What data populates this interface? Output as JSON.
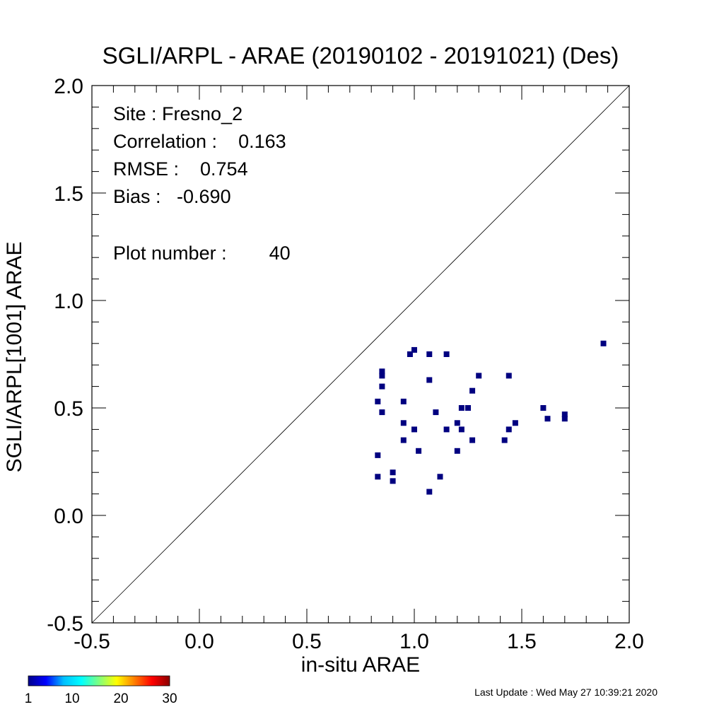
{
  "chart_data": {
    "type": "scatter",
    "title": "SGLI/ARPL - ARAE (20190102 - 20191021) (Des)",
    "xlabel": "in-situ ARAE",
    "ylabel": "SGLI/ARPL[1001]    ARAE",
    "xlim": [
      -0.5,
      2.0
    ],
    "ylim": [
      -0.5,
      2.0
    ],
    "x_ticks": [
      "-0.5",
      "0.0",
      "0.5",
      "1.0",
      "1.5",
      "2.0"
    ],
    "y_ticks": [
      "-0.5",
      "0.0",
      "0.5",
      "1.0",
      "1.5",
      "2.0"
    ],
    "one_to_one_line": true,
    "grid": false,
    "point_color": "#000080",
    "points": [
      {
        "x": 0.83,
        "y": 0.53
      },
      {
        "x": 0.83,
        "y": 0.28
      },
      {
        "x": 0.83,
        "y": 0.18
      },
      {
        "x": 0.85,
        "y": 0.67
      },
      {
        "x": 0.85,
        "y": 0.65
      },
      {
        "x": 0.85,
        "y": 0.6
      },
      {
        "x": 0.85,
        "y": 0.48
      },
      {
        "x": 0.9,
        "y": 0.2
      },
      {
        "x": 0.9,
        "y": 0.16
      },
      {
        "x": 0.95,
        "y": 0.53
      },
      {
        "x": 0.95,
        "y": 0.43
      },
      {
        "x": 0.95,
        "y": 0.35
      },
      {
        "x": 0.98,
        "y": 0.75
      },
      {
        "x": 1.0,
        "y": 0.77
      },
      {
        "x": 1.0,
        "y": 0.4
      },
      {
        "x": 1.02,
        "y": 0.3
      },
      {
        "x": 1.07,
        "y": 0.75
      },
      {
        "x": 1.07,
        "y": 0.63
      },
      {
        "x": 1.07,
        "y": 0.11
      },
      {
        "x": 1.1,
        "y": 0.48
      },
      {
        "x": 1.12,
        "y": 0.18
      },
      {
        "x": 1.15,
        "y": 0.75
      },
      {
        "x": 1.2,
        "y": 0.43
      },
      {
        "x": 1.2,
        "y": 0.3
      },
      {
        "x": 1.22,
        "y": 0.5
      },
      {
        "x": 1.22,
        "y": 0.4
      },
      {
        "x": 1.25,
        "y": 0.5
      },
      {
        "x": 1.27,
        "y": 0.58
      },
      {
        "x": 1.27,
        "y": 0.35
      },
      {
        "x": 1.3,
        "y": 0.65
      },
      {
        "x": 1.42,
        "y": 0.35
      },
      {
        "x": 1.44,
        "y": 0.65
      },
      {
        "x": 1.44,
        "y": 0.4
      },
      {
        "x": 1.47,
        "y": 0.43
      },
      {
        "x": 1.6,
        "y": 0.5
      },
      {
        "x": 1.62,
        "y": 0.45
      },
      {
        "x": 1.7,
        "y": 0.47
      },
      {
        "x": 1.7,
        "y": 0.45
      },
      {
        "x": 1.88,
        "y": 0.8
      },
      {
        "x": 1.15,
        "y": 0.4
      }
    ],
    "annotations": {
      "site": "Site : Fresno_2",
      "correlation": "Correlation :    0.163",
      "rmse": "RMSE :    0.754",
      "bias": "Bias :   -0.690",
      "plot_number": "Plot number :        40"
    },
    "colorbar": {
      "colors": [
        "#00008b",
        "#0000ff",
        "#00bfff",
        "#00ffff",
        "#7fff7f",
        "#ffff00",
        "#ff7f00",
        "#ff0000",
        "#8b0000"
      ],
      "tick_labels": [
        "1",
        "10",
        "20",
        "30"
      ],
      "tick_values": [
        1,
        10,
        20,
        30
      ],
      "range": [
        1,
        30
      ]
    }
  },
  "footer": {
    "last_update": "Last Update : Wed May 27 10:39:21 2020"
  }
}
